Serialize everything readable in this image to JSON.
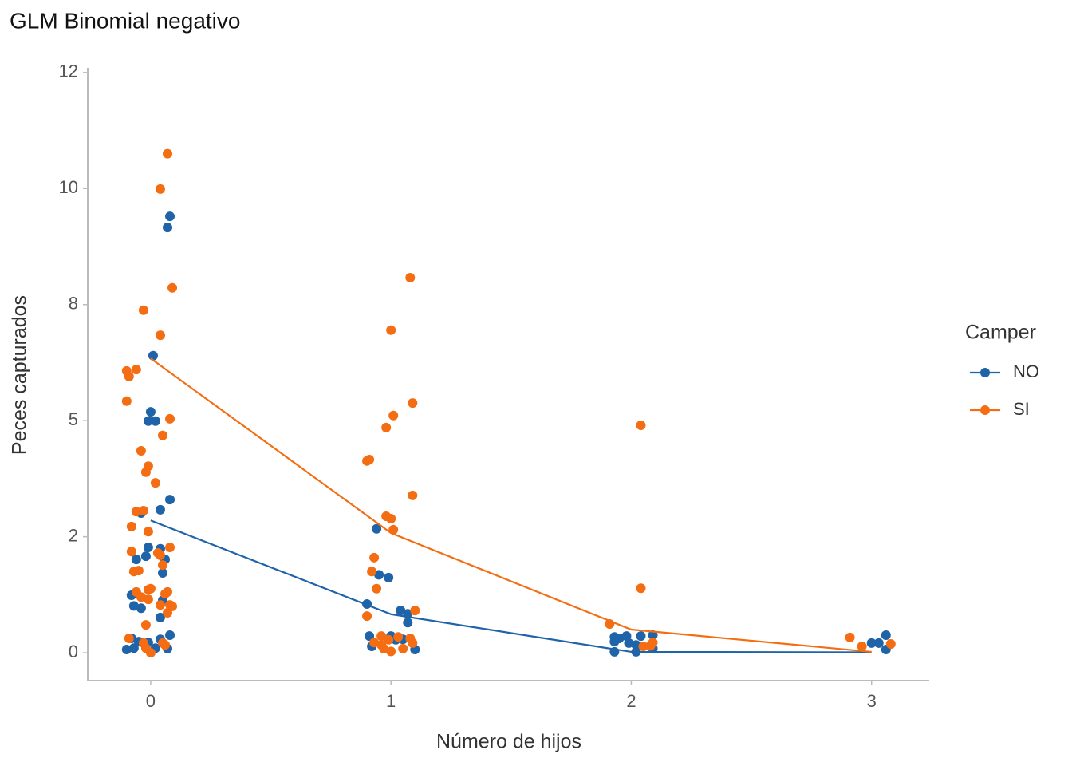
{
  "chart_data": {
    "type": "scatter",
    "title": "GLM Binomial negativo",
    "x_label": "Número de hijos",
    "y_label": "Peces capturados",
    "legend_title": "Camper",
    "legend": "right",
    "grid": false,
    "xlim": [
      -0.262,
      3.24
    ],
    "ylim": [
      -0.6,
      12.6
    ],
    "xticks": [
      0,
      1,
      2,
      3
    ],
    "yticks": [
      0,
      {
        "value": 2.5,
        "label": "2"
      },
      5,
      {
        "value": 7.5,
        "label": "8"
      },
      10,
      {
        "value": 12.5,
        "label": "12"
      }
    ],
    "series": [
      {
        "name": "NO",
        "color": "#1f63a8",
        "x": [
          0.01,
          0.08,
          0.07,
          0.0,
          -0.01,
          0.02,
          0.08,
          0.04,
          -0.04,
          -0.06,
          -0.02,
          -0.01,
          0.04,
          0.06,
          0.05,
          -0.08,
          -0.07,
          -0.04,
          0.05,
          0.04,
          0.08,
          -0.08,
          -0.05,
          -0.1,
          -0.07,
          -0.01,
          0.02,
          0.04,
          0.07,
          0.94,
          0.95,
          0.99,
          0.9,
          1.04,
          1.07,
          1.07,
          0.91,
          1.0,
          0.92,
          1.02,
          1.05,
          1.1,
          1.93,
          1.95,
          1.98,
          2.04,
          2.09,
          1.93,
          1.99,
          2.02,
          1.93,
          2.02,
          2.09,
          3.0,
          3.03,
          3.06,
          3.06
        ],
        "values": [
          6.4,
          9.4,
          9.16,
          5.19,
          4.99,
          4.99,
          3.3,
          3.08,
          3.01,
          2.01,
          2.08,
          2.27,
          2.24,
          2.01,
          1.72,
          1.24,
          1.01,
          0.96,
          1.13,
          0.76,
          0.38,
          0.31,
          0.24,
          0.07,
          0.1,
          0.22,
          0.1,
          0.29,
          0.09,
          2.67,
          1.68,
          1.62,
          1.05,
          0.91,
          0.84,
          0.65,
          0.36,
          0.36,
          0.14,
          0.28,
          0.29,
          0.07,
          0.34,
          0.31,
          0.36,
          0.36,
          0.38,
          0.24,
          0.21,
          0.17,
          0.02,
          0.02,
          0.09,
          0.21,
          0.21,
          0.38,
          0.07
        ],
        "line_x": [
          0,
          1,
          2,
          3
        ],
        "line_values": [
          2.85,
          0.83,
          0.02,
          0.01
        ]
      },
      {
        "name": "SI",
        "color": "#f46d12",
        "x": [
          0.07,
          0.04,
          0.09,
          -0.03,
          0.04,
          -0.1,
          -0.06,
          -0.09,
          -0.1,
          0.08,
          0.05,
          -0.04,
          -0.01,
          -0.02,
          0.02,
          -0.06,
          -0.03,
          -0.08,
          -0.01,
          0.08,
          -0.08,
          0.03,
          0.04,
          0.05,
          -0.05,
          -0.07,
          0.07,
          -0.06,
          -0.01,
          0.0,
          0.06,
          -0.04,
          -0.01,
          0.04,
          0.09,
          0.08,
          0.07,
          -0.02,
          -0.09,
          -0.03,
          -0.02,
          0.0,
          0.05,
          0.06,
          1.08,
          1.0,
          1.09,
          1.01,
          0.98,
          0.9,
          0.91,
          1.09,
          0.98,
          1.0,
          1.01,
          0.93,
          0.92,
          0.94,
          1.1,
          0.9,
          0.96,
          1.08,
          0.99,
          1.03,
          0.93,
          0.96,
          1.09,
          0.97,
          1.0,
          1.05,
          2.04,
          2.04,
          1.91,
          2.09,
          2.08,
          2.05,
          2.91,
          2.96,
          3.08
        ],
        "values": [
          10.75,
          9.99,
          7.86,
          7.38,
          6.84,
          6.07,
          6.1,
          5.95,
          5.42,
          5.04,
          4.68,
          4.35,
          4.02,
          3.89,
          3.66,
          3.04,
          3.06,
          2.72,
          2.61,
          2.27,
          2.18,
          2.15,
          2.1,
          1.89,
          1.77,
          1.75,
          1.31,
          1.31,
          1.36,
          1.38,
          1.27,
          1.2,
          1.15,
          1.03,
          1.0,
          1.03,
          0.86,
          0.6,
          0.31,
          0.21,
          0.1,
          0.0,
          0.21,
          0.17,
          8.08,
          6.95,
          5.38,
          5.11,
          4.85,
          4.13,
          4.16,
          3.39,
          2.94,
          2.89,
          2.65,
          2.05,
          1.75,
          1.38,
          0.91,
          0.79,
          0.36,
          0.31,
          0.28,
          0.34,
          0.22,
          0.17,
          0.21,
          0.09,
          0.03,
          0.09,
          4.9,
          1.39,
          0.62,
          0.22,
          0.15,
          0.14,
          0.33,
          0.14,
          0.19
        ],
        "line_x": [
          0,
          1,
          2,
          3
        ],
        "line_values": [
          6.34,
          2.58,
          0.5,
          0.02
        ]
      }
    ]
  }
}
